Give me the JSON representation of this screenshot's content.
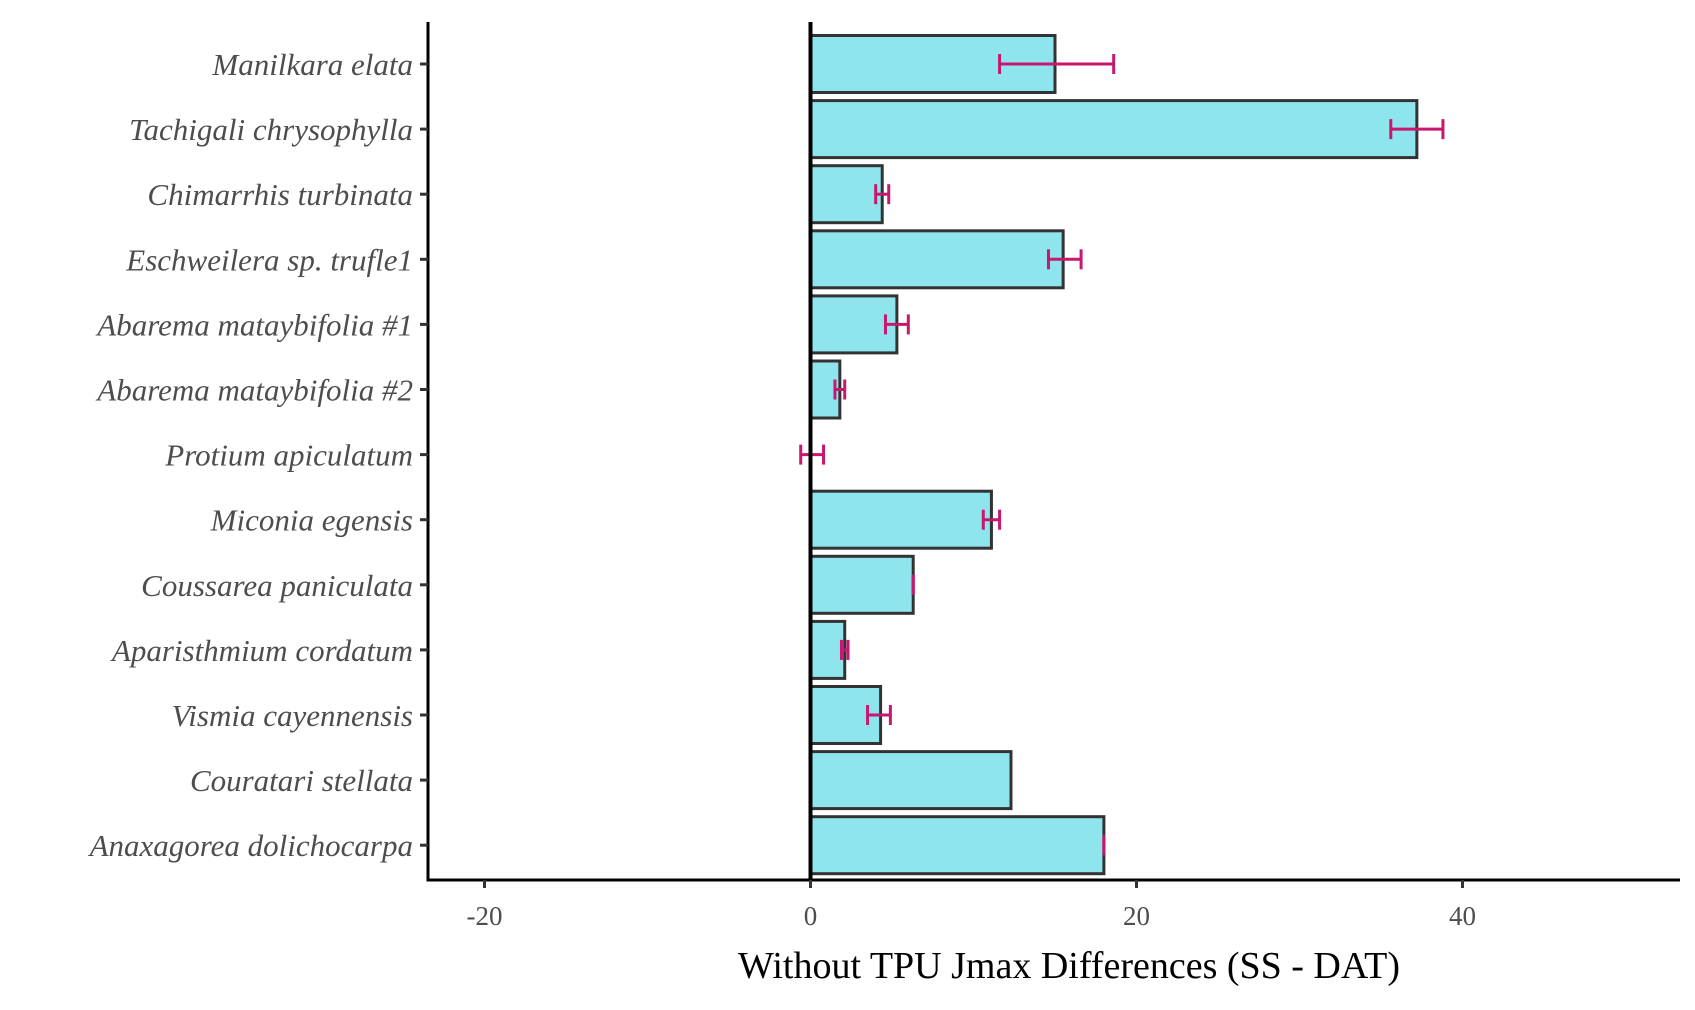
{
  "chart_data": {
    "type": "bar",
    "orientation": "horizontal",
    "xlabel": "Without TPU Jmax Differences (SS - DAT)",
    "ylabel": "",
    "xlim": [
      -23.3,
      53.3
    ],
    "xticks": [
      -20,
      0,
      20,
      40
    ],
    "grid": false,
    "legend": "none",
    "categories": [
      "Manilkara elata",
      "Tachigali chrysophylla",
      "Chimarrhis turbinata",
      "Eschweilera sp. trufle1",
      "Abarema mataybifolia #1",
      "Abarema mataybifolia #2",
      "Protium apiculatum",
      "Miconia egensis",
      "Coussarea paniculata",
      "Aparisthmium cordatum",
      "Vismia cayennensis",
      "Couratari stellata",
      "Anaxagorea dolichocarpa"
    ],
    "values": [
      15.0,
      37.2,
      4.4,
      15.5,
      5.3,
      1.8,
      0.0,
      11.1,
      6.3,
      2.1,
      4.3,
      12.3,
      18.0
    ],
    "error_bars": [
      [
        11.6,
        18.6
      ],
      [
        35.6,
        38.8
      ],
      [
        4.0,
        4.8
      ],
      [
        14.6,
        16.6
      ],
      [
        4.6,
        6.0
      ],
      [
        1.5,
        2.1
      ],
      [
        -0.6,
        0.8
      ],
      [
        10.6,
        11.6
      ],
      [
        6.3,
        6.3
      ],
      [
        1.9,
        2.3
      ],
      [
        3.5,
        4.9
      ],
      null,
      [
        18.0,
        18.0
      ]
    ],
    "colors": {
      "bar_fill": "#8fe5ee",
      "bar_stroke": "#333333",
      "error_bar": "#c8176e",
      "axis": "#000000"
    }
  }
}
